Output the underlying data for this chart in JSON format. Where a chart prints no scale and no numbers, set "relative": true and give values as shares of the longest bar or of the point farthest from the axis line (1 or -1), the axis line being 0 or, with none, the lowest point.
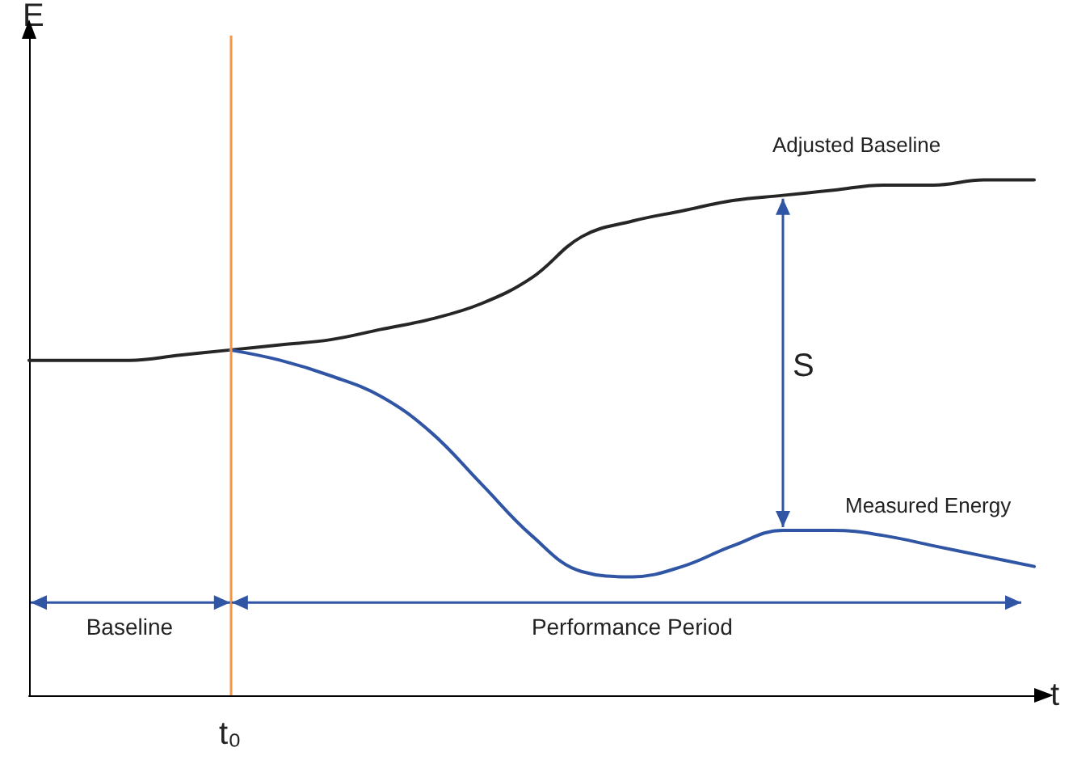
{
  "chart_data": {
    "type": "line",
    "relative": true,
    "xlabel": "t",
    "ylabel": "E",
    "categories": [
      null,
      null,
      null,
      null,
      null,
      null,
      null,
      null,
      null,
      null,
      null,
      null,
      null,
      null,
      null,
      null,
      null,
      null,
      null,
      null,
      null
    ],
    "series": [
      {
        "name": "Adjusted Baseline",
        "color": "#262626",
        "values": [
          0.65,
          0.65,
          0.65,
          0.66,
          0.67,
          0.68,
          0.69,
          0.71,
          0.73,
          0.76,
          0.81,
          0.89,
          0.92,
          0.94,
          0.96,
          0.97,
          0.98,
          0.99,
          0.99,
          1.0,
          1.0
        ]
      },
      {
        "name": "Measured Energy",
        "color": "#2f55a4",
        "values": [
          null,
          null,
          null,
          null,
          0.67,
          0.65,
          0.62,
          0.58,
          0.51,
          0.41,
          0.31,
          0.24,
          0.23,
          0.25,
          0.29,
          0.32,
          0.32,
          0.31,
          0.29,
          0.27,
          0.25
        ]
      }
    ],
    "annotations": [
      "t₀",
      "Baseline",
      "Performance Period",
      "S"
    ],
    "legend": false,
    "grid": false,
    "marker": "none",
    "line_style": "solid"
  }
}
